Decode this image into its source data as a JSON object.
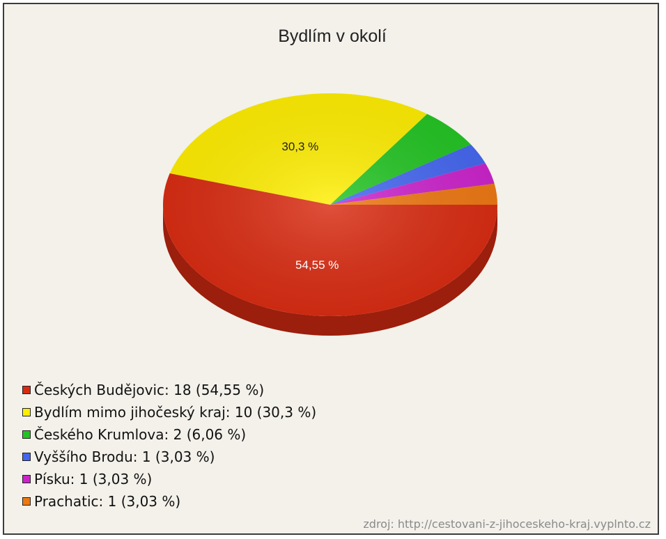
{
  "chart_data": {
    "type": "pie",
    "title": "Bydlím v okolí",
    "slices": [
      {
        "label": "Českých Budějovic",
        "count": 18,
        "percent": "54,55 %",
        "value": 54.55,
        "color": "#d92a10",
        "label_on_pie": "54,55 %"
      },
      {
        "label": "Bydlím mimo jihočeský kraj",
        "count": 10,
        "percent": "30,3 %",
        "value": 30.3,
        "color": "#ffee00",
        "label_on_pie": "30,3 %"
      },
      {
        "label": "Českého Krumlova",
        "count": 2,
        "percent": "6,06 %",
        "value": 6.06,
        "color": "#22c422",
        "label_on_pie": ""
      },
      {
        "label": "Vyššího Brodu",
        "count": 1,
        "percent": "3,03 %",
        "value": 3.03,
        "color": "#4466f0",
        "label_on_pie": ""
      },
      {
        "label": "Písku",
        "count": 1,
        "percent": "3,03 %",
        "value": 3.03,
        "color": "#cc22cc",
        "label_on_pie": ""
      },
      {
        "label": "Prachatic",
        "count": 1,
        "percent": "3,03 %",
        "value": 3.03,
        "color": "#ee7711",
        "label_on_pie": ""
      }
    ],
    "legend_position": "bottom-left"
  },
  "legend": [
    "Českých Budějovic: 18 (54,55 %)",
    "Bydlím mimo jihočeský kraj: 10 (30,3 %)",
    "Českého Krumlova: 2 (6,06 %)",
    "Vyššího Brodu: 1 (3,03 %)",
    "Písku: 1 (3,03 %)",
    "Prachatic: 1 (3,03 %)"
  ],
  "source_text": "zdroj: http://cestovani-z-jihoceskeho-kraj.vyplnto.cz"
}
